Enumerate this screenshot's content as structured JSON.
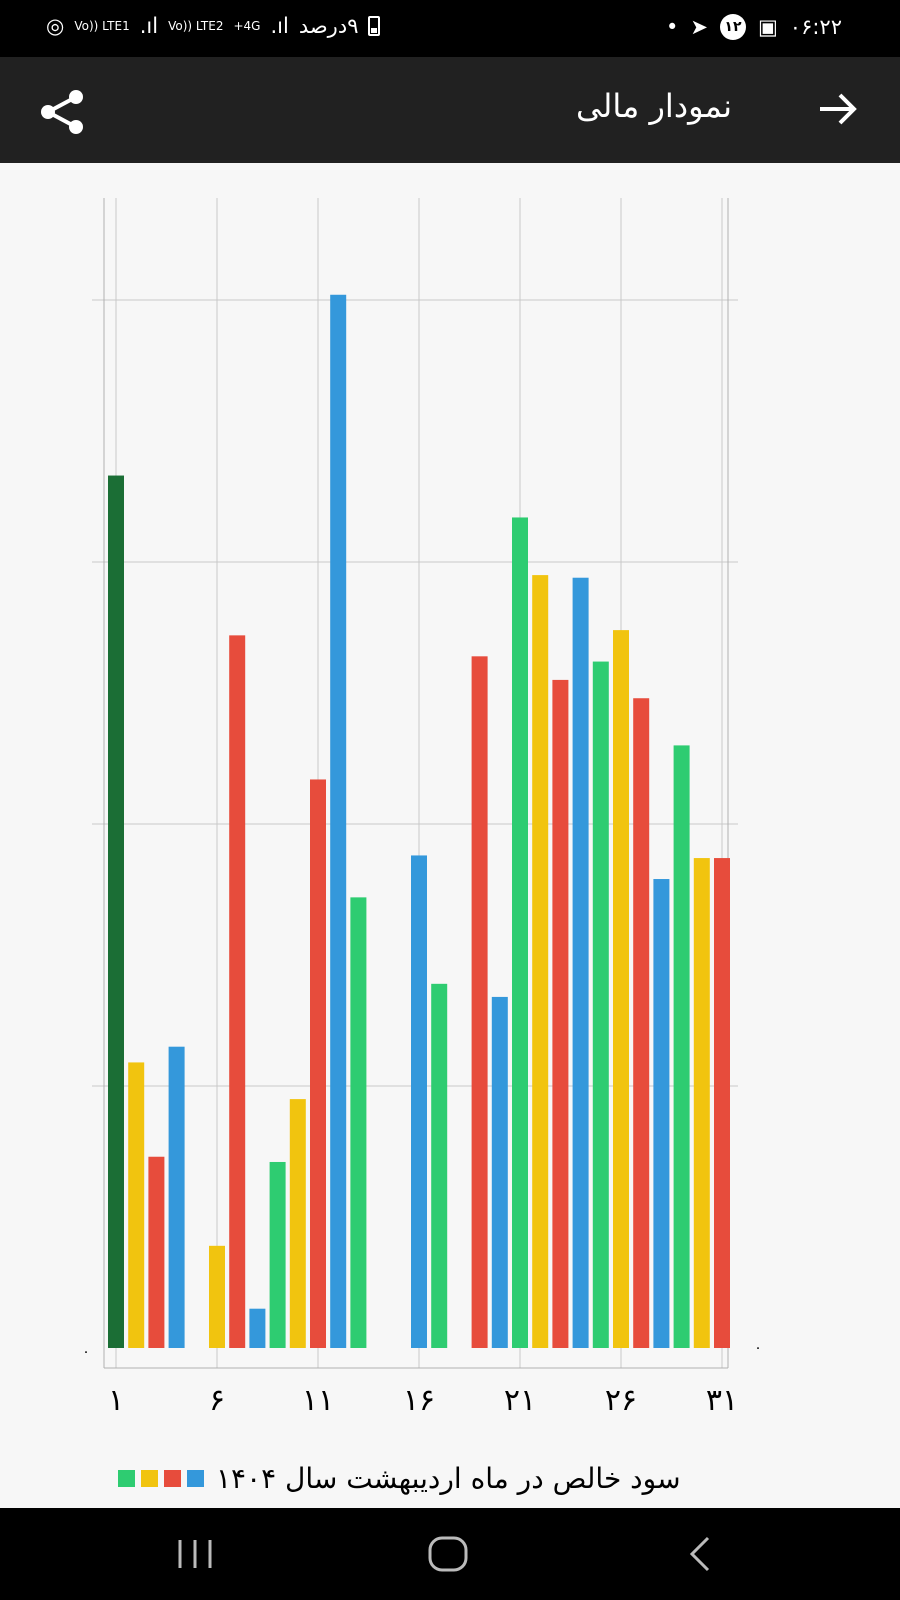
{
  "status_bar": {
    "time": "۰۶:۲۲",
    "battery_text": "۹درصد",
    "network1": "4G+",
    "network2": "Vo)) LTE2",
    "network3": "Vo)) LTE1",
    "notification_count": "۱۲"
  },
  "app_bar": {
    "title": "نمودار مالی"
  },
  "legend": {
    "label": "سود خالص در ماه اردیبهشت سال ۱۴۰۴",
    "colors": [
      "#2ecc71",
      "#f1c40f",
      "#e74c3c",
      "#3498db"
    ]
  },
  "chart_data": {
    "type": "bar",
    "title": "",
    "xlabel": "",
    "ylabel": "",
    "x": [
      1,
      2,
      3,
      4,
      5,
      6,
      7,
      8,
      9,
      10,
      11,
      12,
      13,
      14,
      15,
      16,
      17,
      18,
      19,
      20,
      21,
      22,
      23,
      24,
      25,
      26,
      27,
      28,
      29,
      30,
      31
    ],
    "x_tick_labels": [
      "۱",
      "۶",
      "۱۱",
      "۱۶",
      "۲۱",
      "۲۶",
      "۳۱"
    ],
    "x_ticks": [
      1,
      6,
      11,
      16,
      21,
      26,
      31
    ],
    "ylim": [
      0,
      4.3
    ],
    "gridlines_y": [
      1,
      2,
      3,
      4
    ],
    "grid": true,
    "values": [
      3.33,
      1.09,
      0.73,
      1.15,
      0,
      0.39,
      2.72,
      0.15,
      0.71,
      0.95,
      2.17,
      4.02,
      1.72,
      0,
      0,
      1.88,
      1.39,
      0,
      2.64,
      1.34,
      3.17,
      2.95,
      2.55,
      2.94,
      2.62,
      2.74,
      2.48,
      1.79,
      2.3,
      1.87,
      1.87
    ],
    "colors": [
      "#1b6e35",
      "#f1c40f",
      "#e74c3c",
      "#3498db",
      "#2ecc71",
      "#f1c40f",
      "#e74c3c",
      "#3498db",
      "#2ecc71",
      "#f1c40f",
      "#e74c3c",
      "#3498db",
      "#2ecc71",
      "#f1c40f",
      "#e74c3c",
      "#3498db",
      "#2ecc71",
      "#f1c40f",
      "#e74c3c",
      "#3498db",
      "#2ecc71",
      "#f1c40f",
      "#e74c3c",
      "#3498db",
      "#2ecc71",
      "#f1c40f",
      "#e74c3c",
      "#3498db",
      "#2ecc71",
      "#f1c40f",
      "#e74c3c"
    ],
    "zero_label": "۰"
  }
}
